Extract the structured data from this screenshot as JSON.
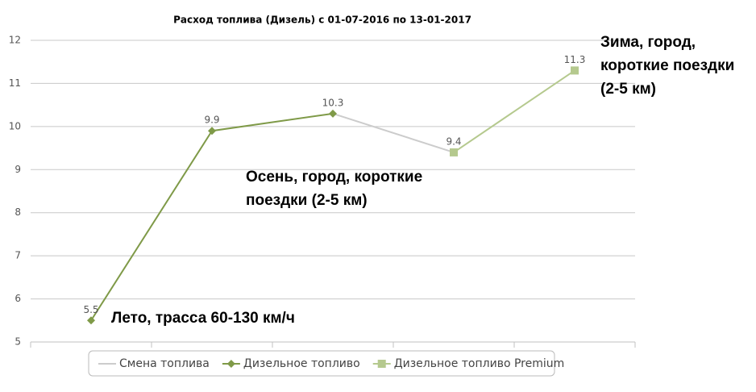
{
  "chart_data": {
    "type": "line",
    "title": "Расход топлива (Дизель) с 01-07-2016 по 13-01-2017",
    "categories": [
      null,
      null,
      null,
      null,
      null
    ],
    "series": [
      {
        "name": "Смена топлива",
        "color": "#cccccc",
        "marker": null,
        "values": [
          null,
          null,
          10.3,
          9.4,
          null
        ]
      },
      {
        "name": "Дизельное топливо",
        "color": "#7f9a48",
        "marker": "diamond",
        "values": [
          5.5,
          9.9,
          10.3,
          null,
          null
        ]
      },
      {
        "name": "Дизельное топливо Premium",
        "color": "#b5c98e",
        "marker": "square",
        "values": [
          null,
          null,
          null,
          9.4,
          11.3
        ]
      }
    ],
    "ylim": [
      5,
      12
    ],
    "yticks": [
      5,
      6,
      7,
      8,
      9,
      10,
      11,
      12
    ],
    "grid": true,
    "legend": "bottom",
    "annotations": [
      {
        "lines": [
          "Лето, трасса 60-130 км/ч"
        ]
      },
      {
        "lines": [
          "Осень, город, короткие",
          "поездки (2-5 км)"
        ]
      },
      {
        "lines": [
          "Зима, город,",
          "короткие поездки",
          "(2-5 км)"
        ]
      }
    ]
  }
}
